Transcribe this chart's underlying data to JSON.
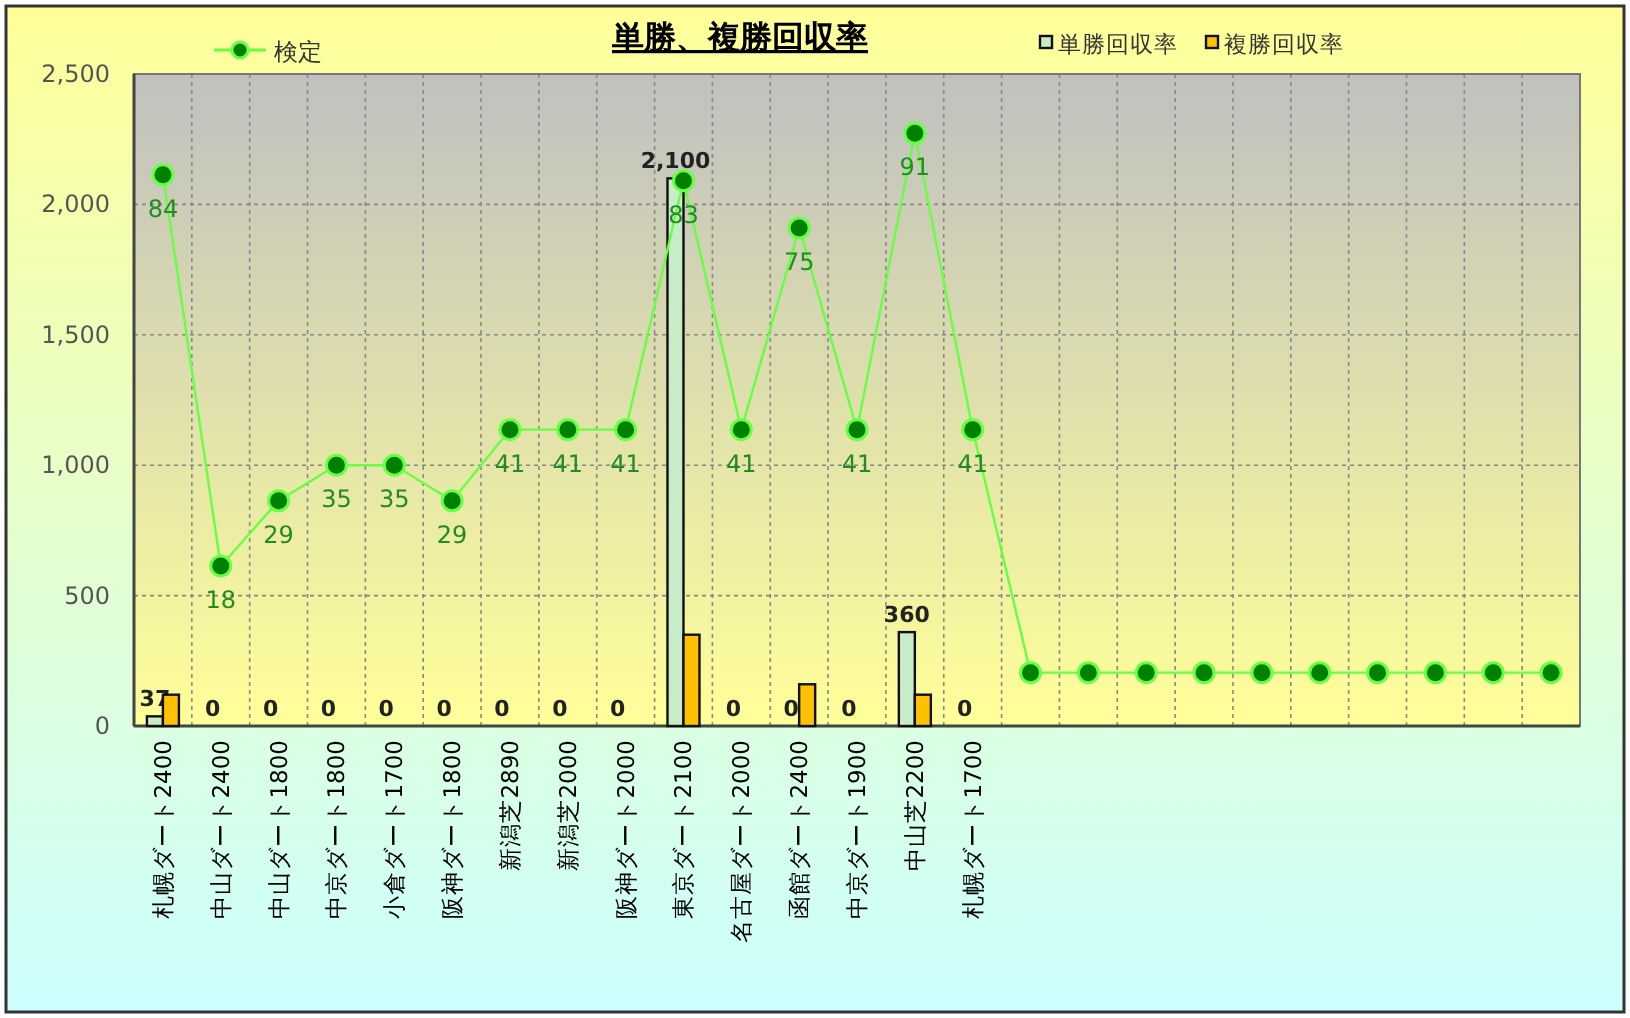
{
  "chart_data": {
    "type": "bar",
    "title": "単勝、複勝回収率",
    "categories": [
      "札幌ダート2400",
      "中山ダート2400",
      "中山ダート1800",
      "中京ダート1800",
      "小倉ダート1700",
      "阪神ダート1800",
      "新潟芝2890",
      "新潟芝2000",
      "阪神ダート2000",
      "東京ダート2100",
      "名古屋ダート2000",
      "函館ダート2400",
      "中京ダート1900",
      "中山芝2200",
      "札幌ダート1700",
      null,
      null,
      null,
      null,
      null,
      null,
      null,
      null,
      null,
      null
    ],
    "series": [
      {
        "name": "単勝回収率",
        "color": "#c8ecc8",
        "values": [
          37,
          0,
          0,
          0,
          0,
          0,
          0,
          0,
          0,
          2100,
          0,
          0,
          0,
          360,
          0,
          null,
          null,
          null,
          null,
          null,
          null,
          null,
          null,
          null,
          null
        ],
        "value_labels": [
          "37",
          "0",
          "0",
          "0",
          "0",
          "0",
          "0",
          "0",
          "0",
          "2,100",
          "0",
          "0",
          "0",
          "360",
          "0",
          null,
          null,
          null,
          null,
          null,
          null,
          null,
          null,
          null,
          null
        ]
      },
      {
        "name": "複勝回収率",
        "color": "#ffc000",
        "values": [
          120,
          0,
          0,
          0,
          0,
          0,
          0,
          0,
          0,
          350,
          0,
          160,
          0,
          120,
          0,
          null,
          null,
          null,
          null,
          null,
          null,
          null,
          null,
          null,
          null
        ]
      },
      {
        "name": "検定",
        "type": "line",
        "axis": "y2",
        "color": "#66ff44",
        "values": [
          84,
          18,
          29,
          35,
          35,
          29,
          41,
          41,
          41,
          83,
          41,
          75,
          41,
          91,
          41,
          0,
          0,
          0,
          0,
          0,
          0,
          0,
          0,
          0,
          0
        ],
        "value_labels": [
          "84",
          "18",
          "29",
          "35",
          "35",
          "29",
          "41",
          "41",
          "41",
          "83",
          "41",
          "75",
          "41",
          "91",
          "41",
          null,
          null,
          null,
          null,
          null,
          null,
          null,
          null,
          null,
          null
        ]
      }
    ],
    "marker": "circle",
    "ylim": [
      0,
      2500
    ],
    "y2lim": [
      -9,
      101
    ],
    "yticks": [
      {
        "value": 0,
        "label": "0"
      },
      {
        "value": 500,
        "label": "500"
      },
      {
        "value": 1000,
        "label": "1,000"
      },
      {
        "value": 1500,
        "label": "1,500"
      },
      {
        "value": 2000,
        "label": "2,000"
      },
      {
        "value": 2500,
        "label": "2,500"
      }
    ],
    "grid": true,
    "legend": "top"
  }
}
